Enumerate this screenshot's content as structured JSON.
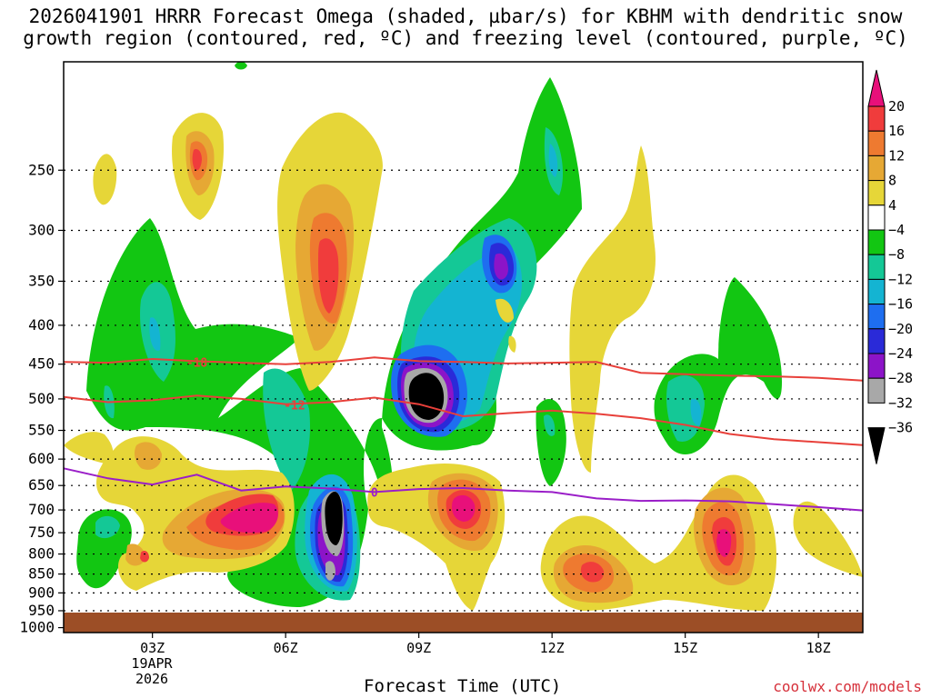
{
  "title_line1": "2026041901 HRRR Forecast Omega (shaded, µbar/s) for KBHM with dendritic snow",
  "title_line2": "growth region (contoured, red, ºC) and freezing level (contoured, purple, ºC)",
  "xlabel": "Forecast Time (UTC)",
  "credit": "coolwx.com/models",
  "date_label": [
    "19APR",
    "2026"
  ],
  "colors": {
    "dgz_line": "#e8403a",
    "freezing_line": "#9a1ec8",
    "ground": "#9c4e26",
    "grid": "#000000"
  },
  "chart_data": {
    "type": "heatmap",
    "x_ticks": [
      {
        "hour": 3,
        "label": "03Z"
      },
      {
        "hour": 6,
        "label": "06Z"
      },
      {
        "hour": 9,
        "label": "09Z"
      },
      {
        "hour": 12,
        "label": "12Z"
      },
      {
        "hour": 15,
        "label": "15Z"
      },
      {
        "hour": 18,
        "label": "18Z"
      }
    ],
    "xlim": [
      1,
      19
    ],
    "y_ticks": [
      250,
      300,
      350,
      400,
      450,
      500,
      550,
      600,
      650,
      700,
      750,
      800,
      850,
      900,
      950,
      1000
    ],
    "ylim": [
      1015,
      180
    ],
    "colorbar": {
      "labels": [
        "20",
        "16",
        "12",
        "8",
        "4",
        "−4",
        "−8",
        "−12",
        "−16",
        "−20",
        "−24",
        "−28",
        "−32",
        "−36"
      ],
      "colors": [
        "#e8107a",
        "#f03c3c",
        "#ee7a30",
        "#e6a834",
        "#e6d638",
        "#ffffff",
        "#12c612",
        "#14c896",
        "#14b4d2",
        "#1e6ef0",
        "#2a2ad8",
        "#8c14c8",
        "#a8a8a8",
        "#000000"
      ]
    },
    "dgz_contours": [
      {
        "label": "-18",
        "label_at": [
          4,
          447
        ],
        "points": [
          [
            1,
            447
          ],
          [
            2,
            448
          ],
          [
            3,
            443
          ],
          [
            4,
            446
          ],
          [
            5,
            448
          ],
          [
            6,
            450
          ],
          [
            7,
            447
          ],
          [
            8,
            441
          ],
          [
            9,
            446
          ],
          [
            10,
            447
          ],
          [
            11,
            449
          ],
          [
            12,
            448
          ],
          [
            13,
            447
          ],
          [
            14,
            462
          ],
          [
            15,
            464
          ],
          [
            16,
            466
          ],
          [
            17,
            467
          ],
          [
            18,
            469
          ],
          [
            19,
            473
          ]
        ]
      },
      {
        "label": "-12",
        "label_at": [
          6.2,
          509
        ],
        "points": [
          [
            1,
            497
          ],
          [
            2,
            505
          ],
          [
            3,
            502
          ],
          [
            4,
            495
          ],
          [
            5,
            500
          ],
          [
            6,
            508
          ],
          [
            7,
            505
          ],
          [
            8,
            498
          ],
          [
            9,
            508
          ],
          [
            10,
            527
          ],
          [
            11,
            522
          ],
          [
            12,
            518
          ],
          [
            13,
            523
          ],
          [
            14,
            530
          ],
          [
            15,
            541
          ],
          [
            16,
            556
          ],
          [
            17,
            565
          ],
          [
            18,
            570
          ],
          [
            19,
            575
          ]
        ]
      }
    ],
    "freezing_contour": {
      "label": "0",
      "label_at": [
        8,
        663
      ],
      "points": [
        [
          1,
          617
        ],
        [
          2,
          636
        ],
        [
          3,
          648
        ],
        [
          4,
          629
        ],
        [
          5,
          660
        ],
        [
          6,
          652
        ],
        [
          7,
          656
        ],
        [
          8,
          663
        ],
        [
          9,
          657
        ],
        [
          10,
          655
        ],
        [
          11,
          660
        ],
        [
          12,
          663
        ],
        [
          13,
          676
        ],
        [
          14,
          681
        ],
        [
          15,
          680
        ],
        [
          16,
          682
        ],
        [
          17,
          688
        ],
        [
          18,
          694
        ],
        [
          19,
          701
        ]
      ]
    }
  }
}
